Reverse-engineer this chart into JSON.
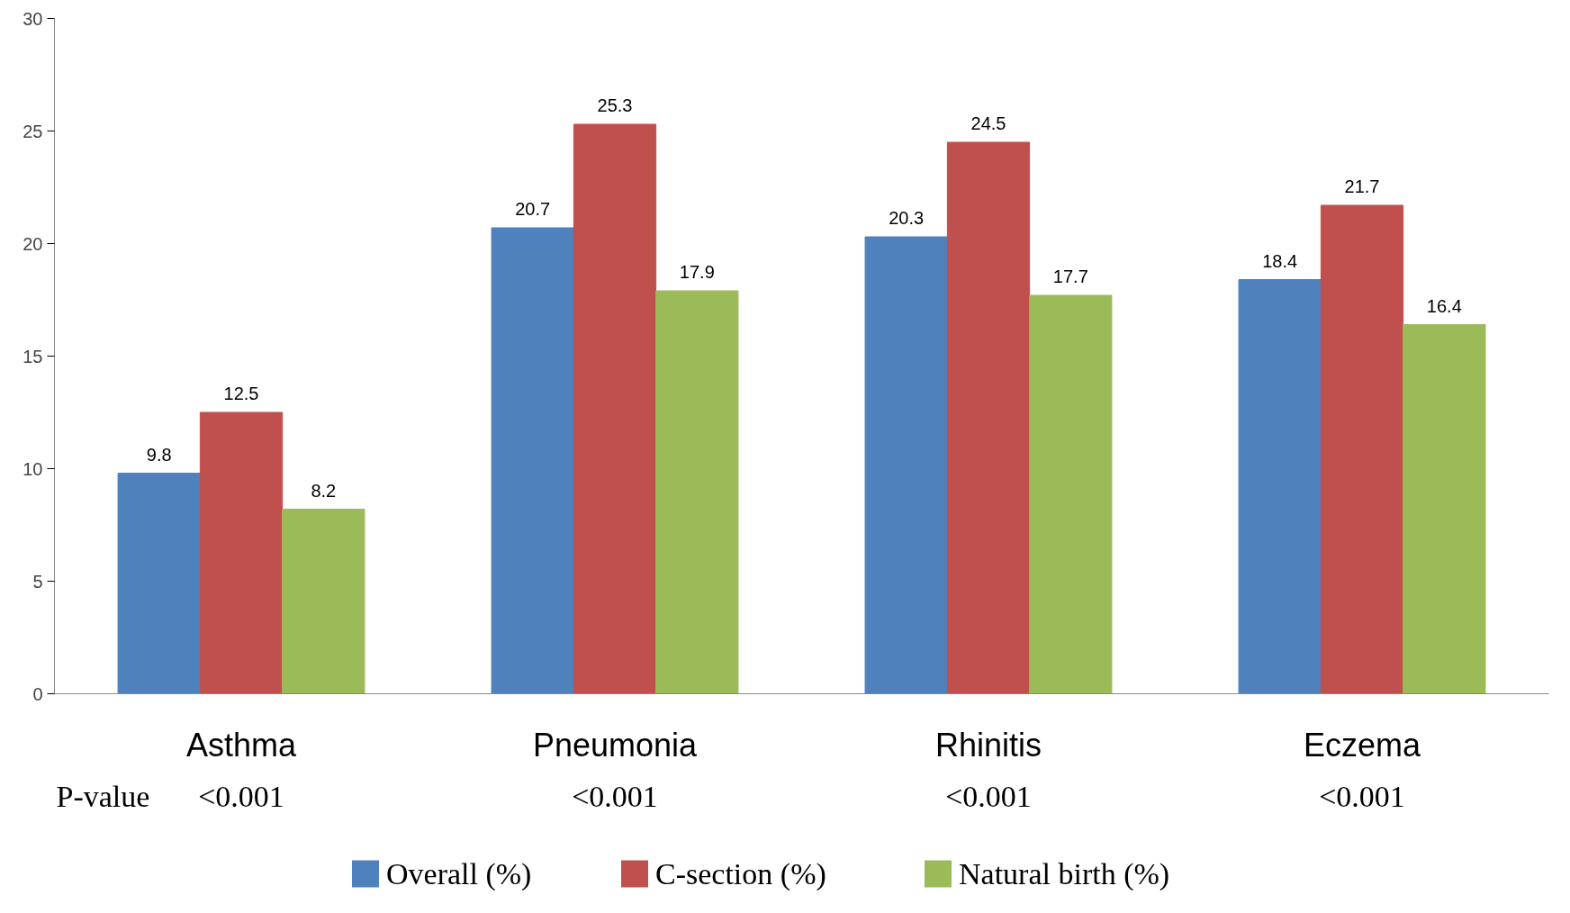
{
  "chart_data": {
    "type": "bar",
    "categories": [
      "Asthma",
      "Pneumonia",
      "Rhinitis",
      "Eczema"
    ],
    "series": [
      {
        "name": "Overall (%)",
        "color": "#4f81bd",
        "values": [
          9.8,
          20.7,
          20.3,
          18.4
        ]
      },
      {
        "name": "C-section (%)",
        "color": "#c0504d",
        "values": [
          12.5,
          25.3,
          24.5,
          21.7
        ]
      },
      {
        "name": "Natural birth (%)",
        "color": "#9bbb59",
        "values": [
          8.2,
          17.9,
          17.7,
          16.4
        ]
      }
    ],
    "ylim": [
      0,
      30
    ],
    "yticks": [
      0,
      5,
      10,
      15,
      20,
      25,
      30
    ],
    "grid": false,
    "legend": "bottom",
    "data_labels": true,
    "annotations": [
      "P-value",
      "<0.001",
      "<0.001",
      "<0.001",
      "<0.001"
    ]
  }
}
